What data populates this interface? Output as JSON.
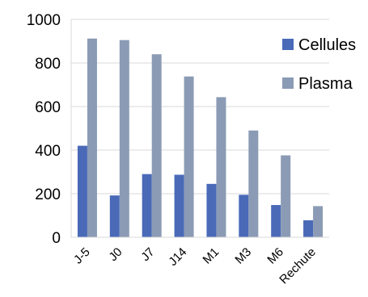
{
  "chart_data": {
    "type": "bar",
    "categories": [
      "J-5",
      "J0",
      "J7",
      "J14",
      "M1",
      "M3",
      "M6",
      "Rechute"
    ],
    "series": [
      {
        "name": "Cellules",
        "color": "#4A6AB8",
        "values": [
          420,
          192,
          290,
          287,
          245,
          195,
          148,
          78
        ]
      },
      {
        "name": "Plasma",
        "color": "#8B9BB5",
        "values": [
          912,
          905,
          840,
          738,
          643,
          490,
          376,
          143
        ]
      }
    ],
    "yticks": [
      0,
      200,
      400,
      600,
      800,
      1000
    ],
    "ylim": [
      0,
      1000
    ],
    "grid": true,
    "legend": "right"
  }
}
